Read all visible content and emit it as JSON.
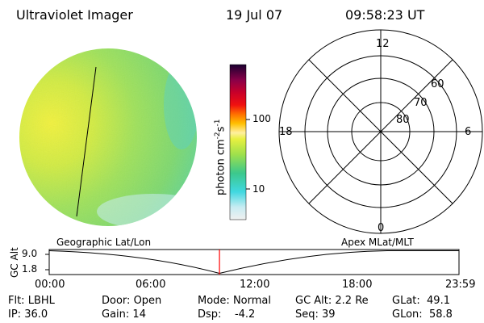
{
  "header": {
    "title": "Ultraviolet Imager",
    "date": "19 Jul 07",
    "time": "09:58:23 UT"
  },
  "colorbar": {
    "label": "photon cm",
    "label_sup1": "-2",
    "label_s": "s",
    "label_sup2": "-1",
    "ticks": [
      "100",
      "10"
    ]
  },
  "polar": {
    "mlt_labels": [
      "12",
      "18",
      "6",
      "0"
    ],
    "lat_labels": [
      "60",
      "70",
      "80"
    ]
  },
  "timeline": {
    "y_label": "GC Alt",
    "y_ticks": [
      "9.0",
      "1.8"
    ],
    "left_caption": "Geographic Lat/Lon",
    "right_caption": "Apex  MLat/MLT",
    "x_ticks": [
      "00:00",
      "06:00",
      "12:00",
      "18:00",
      "23:59"
    ],
    "current_time_fraction": 0.4155,
    "marker_color": "#ff0000"
  },
  "footer": {
    "row1": [
      {
        "label": "Flt:",
        "value": "LBHL"
      },
      {
        "label": "Door:",
        "value": "Open"
      },
      {
        "label": "Mode:",
        "value": "Normal"
      },
      {
        "label": "GC Alt:",
        "value": "2.2 Re"
      },
      {
        "label": "GLat:",
        "value": "49.1"
      }
    ],
    "row2": [
      {
        "label": "IP:",
        "value": "36.0"
      },
      {
        "label": "Gain:",
        "value": "14"
      },
      {
        "label": "Dsp:",
        "value": "-4.2"
      },
      {
        "label": "Seq:",
        "value": "39"
      },
      {
        "label": "GLon:",
        "value": "58.8"
      }
    ]
  }
}
